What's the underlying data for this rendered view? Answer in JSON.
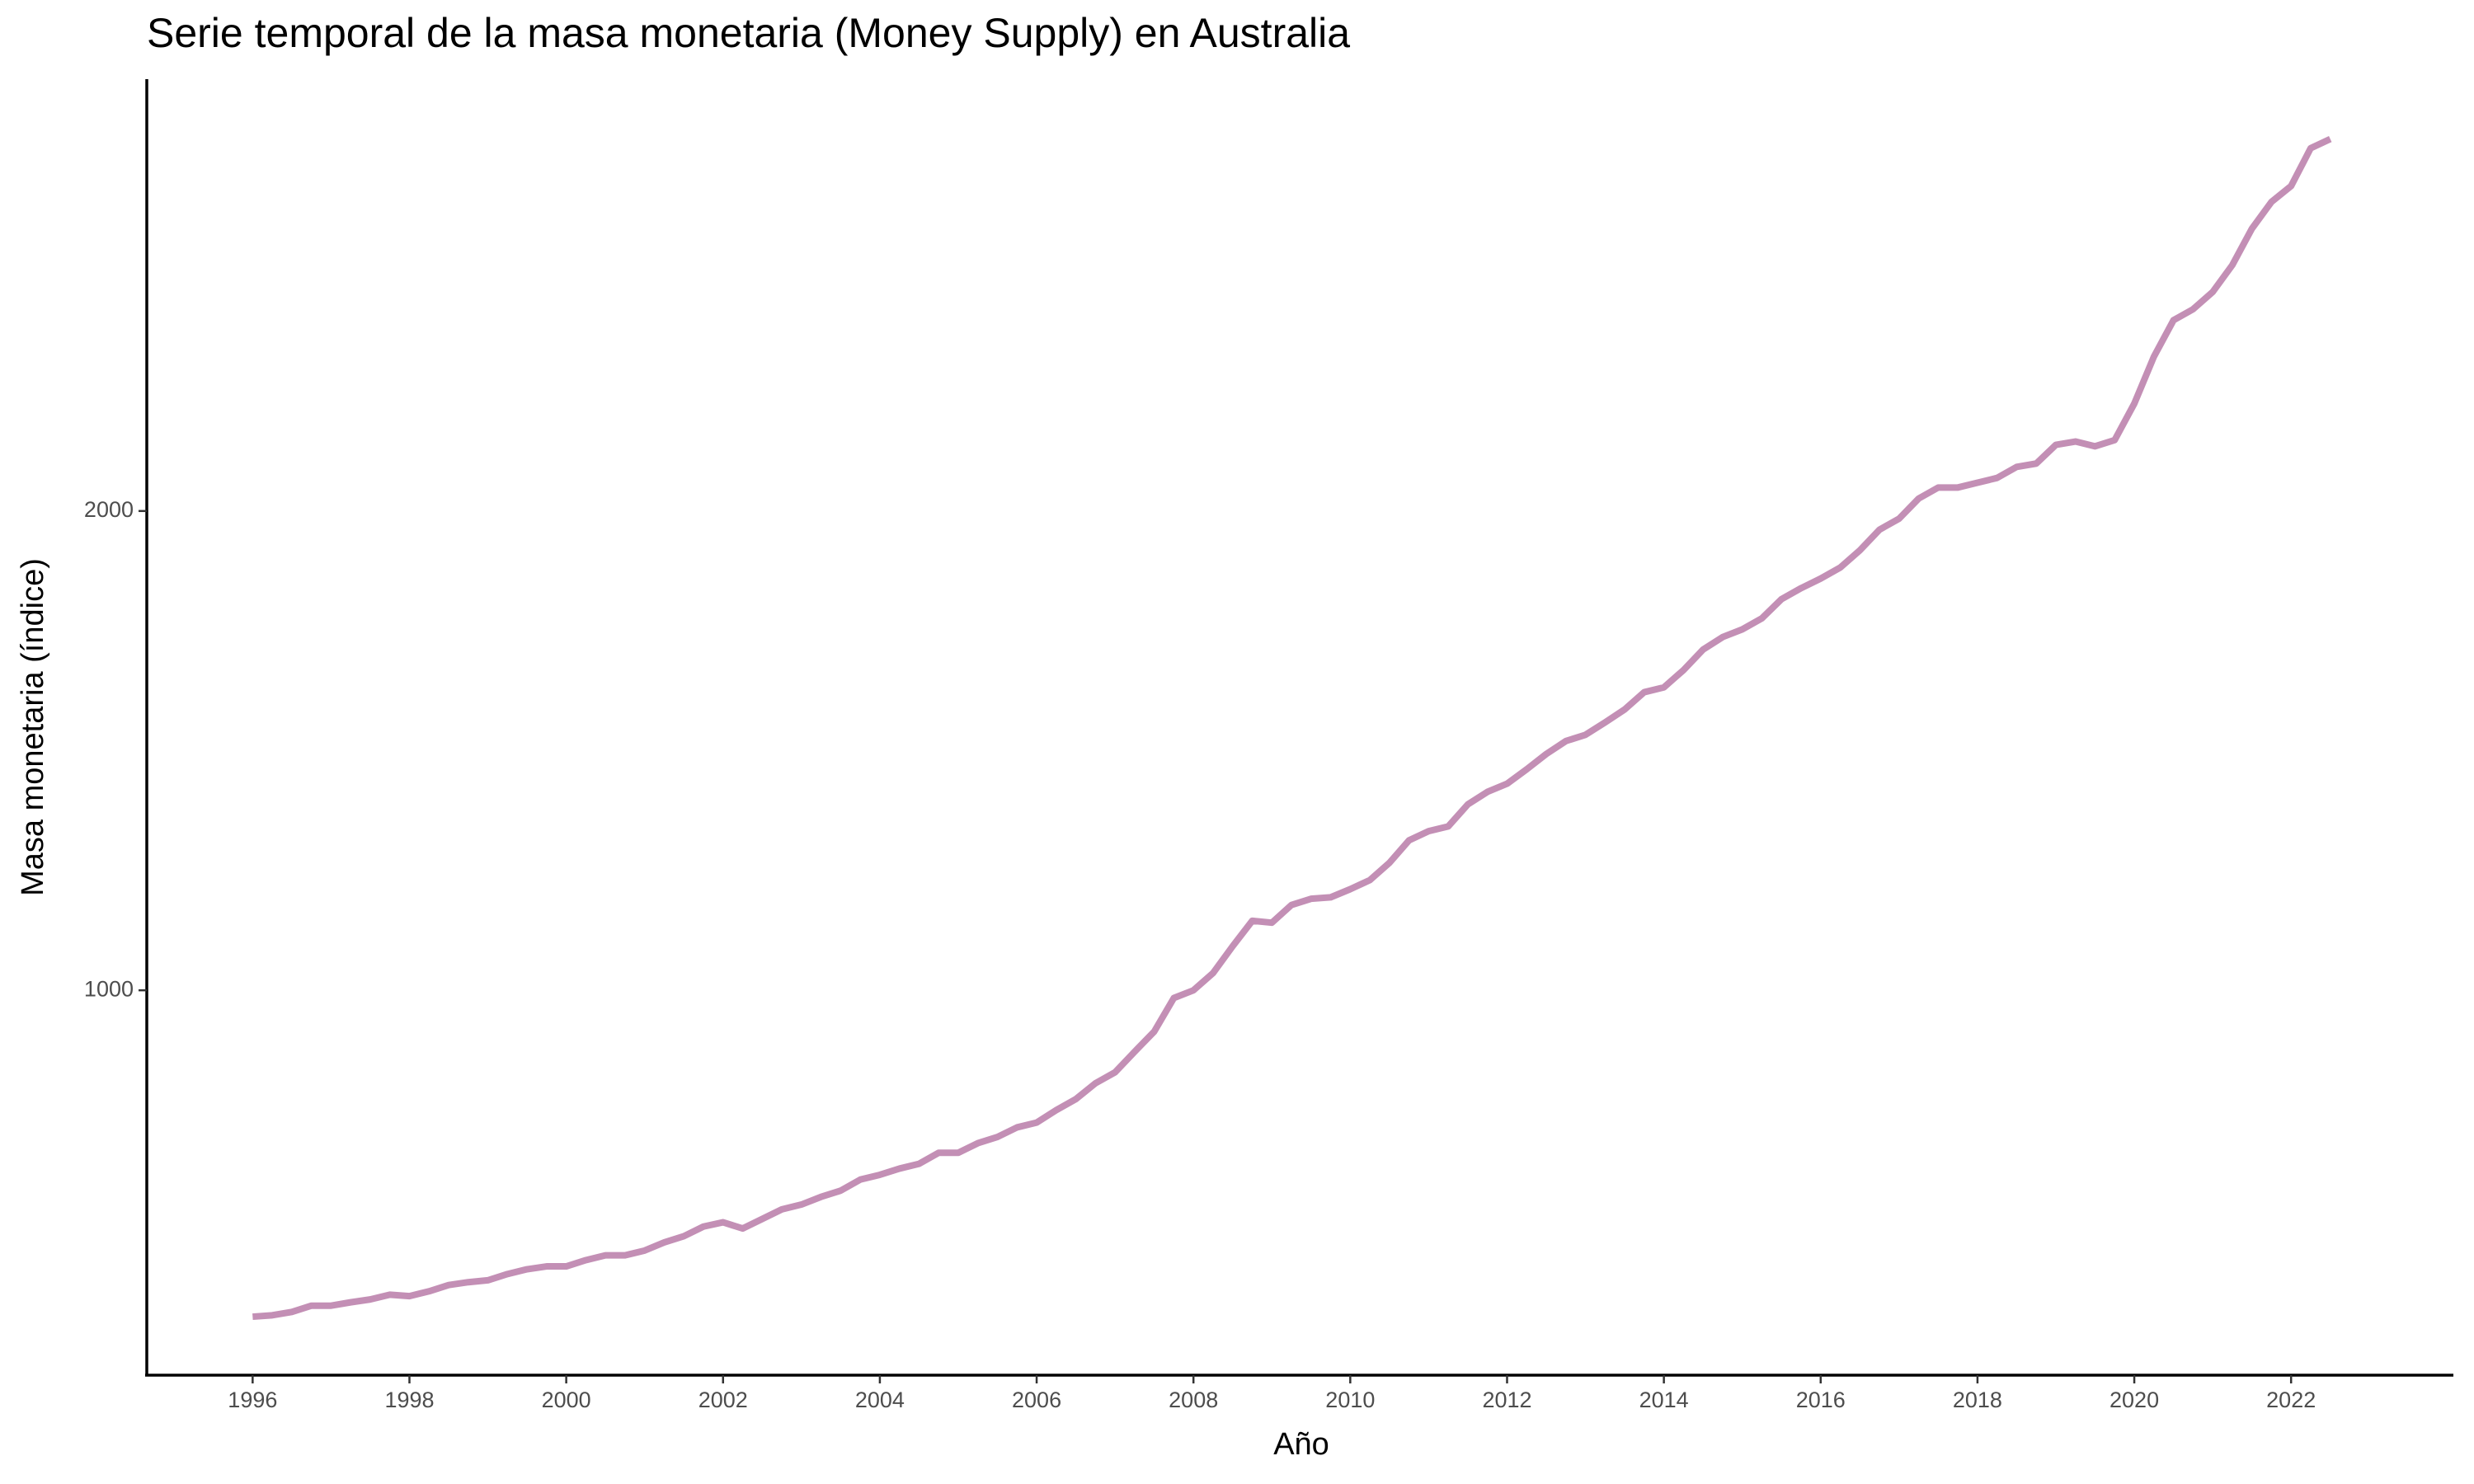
{
  "chart_data": {
    "type": "line",
    "title": "Serie temporal de la masa monetaria (Money Supply) en Australia",
    "xlabel": "Año",
    "ylabel": "Masa monetaria (índice)",
    "color": "#c38fb5",
    "x": [
      1996,
      1996.25,
      1996.5,
      1996.75,
      1997,
      1997.25,
      1997.5,
      1997.75,
      1998,
      1998.25,
      1998.5,
      1998.75,
      1999,
      1999.25,
      1999.5,
      1999.75,
      2000,
      2000.25,
      2000.5,
      2000.75,
      2001,
      2001.25,
      2001.5,
      2001.75,
      2002,
      2002.25,
      2002.5,
      2002.75,
      2003,
      2003.25,
      2003.5,
      2003.75,
      2004,
      2004.25,
      2004.5,
      2004.75,
      2005,
      2005.25,
      2005.5,
      2005.75,
      2006,
      2006.25,
      2006.5,
      2006.75,
      2007,
      2007.25,
      2007.5,
      2007.75,
      2008,
      2008.25,
      2008.5,
      2008.75,
      2009,
      2009.25,
      2009.5,
      2009.75,
      2010,
      2010.25,
      2010.5,
      2010.75,
      2011,
      2011.25,
      2011.5,
      2011.75,
      2012,
      2012.25,
      2012.5,
      2012.75,
      2013,
      2013.25,
      2013.5,
      2013.75,
      2014,
      2014.25,
      2014.5,
      2014.75,
      2015,
      2015.25,
      2015.5,
      2015.75,
      2016,
      2016.25,
      2016.5,
      2016.75,
      2017,
      2017.25,
      2017.5,
      2017.75,
      2018,
      2018.25,
      2018.5,
      2018.75,
      2019,
      2019.25,
      2019.5,
      2019.75,
      2020,
      2020.25,
      2020.5,
      2020.75,
      2021,
      2021.25,
      2021.5,
      2021.75,
      2022,
      2022.25,
      2022.5
    ],
    "values": [
      319,
      322,
      329,
      342,
      342,
      349,
      355,
      365,
      362,
      372,
      385,
      391,
      395,
      408,
      418,
      424,
      424,
      437,
      447,
      447,
      457,
      474,
      487,
      507,
      516,
      503,
      523,
      543,
      553,
      569,
      582,
      605,
      615,
      628,
      638,
      661,
      661,
      681,
      694,
      714,
      724,
      750,
      773,
      806,
      829,
      872,
      914,
      984,
      1000,
      1036,
      1092,
      1145,
      1141,
      1178,
      1191,
      1194,
      1211,
      1230,
      1266,
      1313,
      1332,
      1342,
      1388,
      1414,
      1431,
      1461,
      1493,
      1520,
      1533,
      1559,
      1586,
      1622,
      1632,
      1668,
      1711,
      1737,
      1753,
      1776,
      1816,
      1839,
      1859,
      1882,
      1918,
      1961,
      1984,
      2026,
      2049,
      2049,
      2059,
      2069,
      2092,
      2099,
      2138,
      2145,
      2135,
      2148,
      2224,
      2322,
      2398,
      2421,
      2457,
      2513,
      2589,
      2645,
      2678,
      2757,
      2776
    ],
    "xlim": [
      1994.65,
      2024.07
    ],
    "ylim": [
      197,
      2901
    ],
    "xticks": [
      1996,
      1998,
      2000,
      2002,
      2004,
      2006,
      2008,
      2010,
      2012,
      2014,
      2016,
      2018,
      2020,
      2022
    ],
    "yticks": [
      1000,
      2000
    ],
    "grid": false
  }
}
